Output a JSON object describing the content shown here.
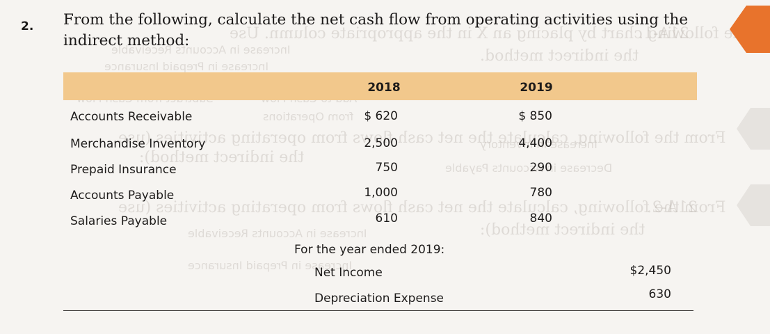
{
  "problem": {
    "number": "2.",
    "text": "From the following, calculate the net cash flow from operating activities using the indirect method:"
  },
  "table": {
    "columns": [
      "2018",
      "2019"
    ],
    "rows": [
      {
        "label": "Accounts Receivable",
        "v2018": "$  620",
        "v2019": "$  850"
      },
      {
        "label": "Merchandise Inventory",
        "v2018": "2,500",
        "v2019": "4,400"
      },
      {
        "label": "Prepaid Insurance",
        "v2018": "750",
        "v2019": "290"
      },
      {
        "label": "Accounts Payable",
        "v2018": "1,000",
        "v2019": "780"
      },
      {
        "label": "Salaries Payable",
        "v2018": "610",
        "v2019": "840"
      }
    ]
  },
  "summary": {
    "heading": "For the year ended 2019:",
    "items": [
      {
        "label": "Net Income",
        "value": "$2,450"
      },
      {
        "label": "Depreciation Expense",
        "value": "630"
      }
    ]
  },
  "colors": {
    "header_band": "#f2c88c",
    "tab_arrow": "#e8732c",
    "page_bg": "#f6f4f1"
  },
  "icons": {
    "tab": "orange-arrow-tab-icon"
  },
  "bleed_through": {
    "line1": "Complete the following chart by placing an X in the appropriate column. Use",
    "line2": "the indirect method.",
    "line3": "Increase in Accounts Receivable",
    "line4": "Increase in Prepaid Insurance",
    "line5": "Add to Cash Flow",
    "line6": "from Operations",
    "line7": "Subtract from Cash Flow",
    "line8": "From the following, calculate the net cash flows from operating activities (use",
    "line9": "the indirect method):",
    "line10": "Decrease in Accounts Payable",
    "line11": "Increase in Inventory",
    "line12": "21A-2.",
    "line13": "21A-1."
  }
}
